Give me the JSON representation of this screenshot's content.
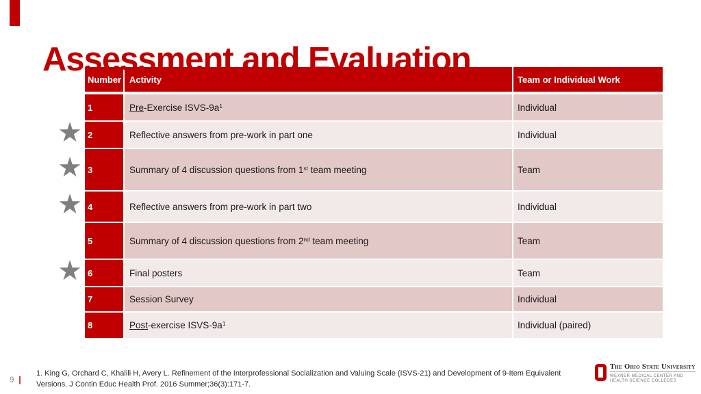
{
  "slide": {
    "title": "Assessment and Evaluation",
    "page_number": "9",
    "page_separator": "|"
  },
  "table": {
    "headers": [
      "Number",
      "Activity",
      "Team or Individual Work"
    ],
    "rows": [
      {
        "number": "1",
        "activity": [
          {
            "t": "Pre",
            "u": true
          },
          {
            "t": "-Exercise ISVS-9a"
          },
          {
            "t": "1",
            "sup": true
          }
        ],
        "work": "Individual",
        "starred": false
      },
      {
        "number": "2",
        "activity": [
          {
            "t": "Reflective answers from pre-work in part one"
          }
        ],
        "work": "Individual",
        "starred": true
      },
      {
        "number": "3",
        "activity": [
          {
            "t": "Summary of 4 discussion questions from 1"
          },
          {
            "t": "st",
            "sup": true
          },
          {
            "t": " team meeting"
          }
        ],
        "work": "Team",
        "starred": true
      },
      {
        "number": "4",
        "activity": [
          {
            "t": "Reflective answers from pre-work in part two"
          }
        ],
        "work": "Individual",
        "starred": true
      },
      {
        "number": "5",
        "activity": [
          {
            "t": "Summary of 4 discussion questions from 2"
          },
          {
            "t": "nd",
            "sup": true
          },
          {
            "t": " team meeting"
          }
        ],
        "work": "Team",
        "starred": false
      },
      {
        "number": "6",
        "activity": [
          {
            "t": "Final posters"
          }
        ],
        "work": "Team",
        "starred": true
      },
      {
        "number": "7",
        "activity": [
          {
            "t": "Session Survey"
          }
        ],
        "work": "Individual",
        "starred": false
      },
      {
        "number": "8",
        "activity": [
          {
            "t": "Post",
            "u": true
          },
          {
            "t": "-exercise ISVS-9a"
          },
          {
            "t": "1",
            "sup": true
          }
        ],
        "work": "Individual (paired)",
        "starred": false
      }
    ]
  },
  "footnote": {
    "line1": "1. King G, Orchard C, Khalili H, Avery L. Refinement of the Interprofessional Socialization and Valuing Scale (ISVS-21) and Development of 9-Item Equivalent",
    "line2": "Versions. J Contin Educ Health Prof. 2016 Summer;36(3):171-7."
  },
  "logo": {
    "icon": "block-o-icon",
    "institution": "The Ohio State University",
    "sub_line1": "Wexner Medical Center and",
    "sub_line2": "Health Science Colleges"
  },
  "icons": {
    "star": "★"
  },
  "colors": {
    "scarlet": "#C00000",
    "row_dark": "#E3C8C8",
    "row_light": "#F2E9E9",
    "star_gray": "#7F7F7F",
    "logo_red": "#BB0000"
  }
}
